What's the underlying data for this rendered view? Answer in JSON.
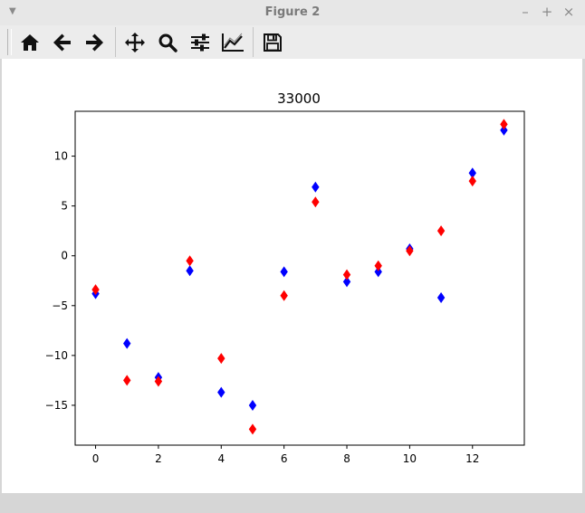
{
  "window": {
    "title": "Figure 2"
  },
  "toolbar": {
    "buttons": [
      {
        "name": "home-button",
        "icon": "home-icon"
      },
      {
        "name": "back-button",
        "icon": "arrow-left-icon"
      },
      {
        "name": "forward-button",
        "icon": "arrow-right-icon"
      },
      {
        "name": "pan-button",
        "icon": "move-icon"
      },
      {
        "name": "zoom-button",
        "icon": "search-icon"
      },
      {
        "name": "configure-subplots-button",
        "icon": "sliders-icon"
      },
      {
        "name": "edit-axis-button",
        "icon": "chart-line-icon"
      },
      {
        "name": "save-button",
        "icon": "floppy-disk-icon"
      }
    ]
  },
  "chart_data": {
    "type": "scatter",
    "title": "33000",
    "xlabel": "",
    "ylabel": "",
    "xlim": [
      -0.65,
      13.65
    ],
    "ylim": [
      -19,
      14.5
    ],
    "xticks": [
      0,
      2,
      4,
      6,
      8,
      10,
      12
    ],
    "yticks": [
      10,
      5,
      0,
      -5,
      -10,
      -15
    ],
    "ytick_labels": [
      "10",
      "5",
      "0",
      "−5",
      "−10",
      "−15"
    ],
    "marker": "diamond",
    "grid": false,
    "series": [
      {
        "color": "#0000ff",
        "x": [
          0,
          1,
          2,
          3,
          4,
          5,
          6,
          7,
          8,
          9,
          10,
          11,
          12,
          13
        ],
        "y": [
          -3.8,
          -8.8,
          -12.2,
          -1.5,
          -13.7,
          -15.0,
          -1.6,
          6.9,
          -2.6,
          -1.6,
          0.7,
          -4.2,
          8.3,
          12.6
        ]
      },
      {
        "color": "#ff0000",
        "x": [
          0,
          1,
          2,
          3,
          4,
          5,
          6,
          7,
          8,
          9,
          10,
          11,
          12,
          13
        ],
        "y": [
          -3.4,
          -12.5,
          -12.6,
          -0.5,
          -10.3,
          -17.4,
          -4.0,
          5.4,
          -1.9,
          -1.0,
          0.5,
          2.5,
          7.5,
          13.2
        ]
      }
    ]
  }
}
